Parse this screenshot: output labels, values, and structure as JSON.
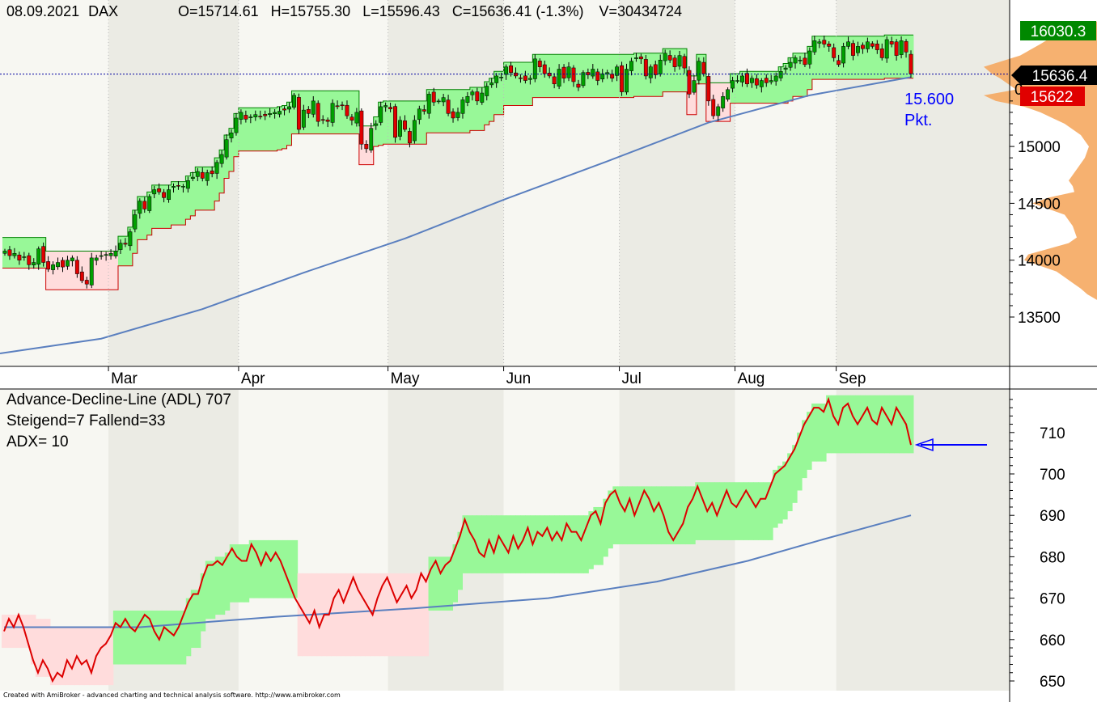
{
  "chart_data": [
    {
      "type": "candlestick",
      "header": {
        "date": "08.09.2021",
        "symbol": "DAX",
        "open": "O=15714.61",
        "high": "H=15755.30",
        "low": "L=15596.43",
        "close": "C=15636.41 (-1.3%)",
        "volume": "V=30434724"
      },
      "y_ticks": [
        13500,
        14000,
        14500,
        15000
      ],
      "ylim": [
        13200,
        16250
      ],
      "months": [
        "Mar",
        "Apr",
        "May",
        "Jun",
        "Jul",
        "Aug",
        "Sep"
      ],
      "price_badges": {
        "high_label": "16030.3",
        "last_label": "15636.4",
        "stop_label": "15622",
        "partial_tick_label": "0"
      },
      "annotation": {
        "line1": "15.600",
        "line2": "Pkt."
      },
      "last_close": 15636.41,
      "series": {
        "close": [
          14080,
          14040,
          14060,
          14000,
          14030,
          13960,
          13980,
          14100,
          13980,
          13920,
          13960,
          13980,
          13940,
          14000,
          14020,
          13880,
          13820,
          13790,
          14020,
          14020,
          14040,
          14050,
          14060,
          14080,
          14150,
          14140,
          14250,
          14400,
          14520,
          14450,
          14560,
          14620,
          14600,
          14550,
          14620,
          14650,
          14650,
          14650,
          14700,
          14730,
          14780,
          14720,
          14770,
          14760,
          14860,
          14930,
          15060,
          15120,
          15250,
          15300,
          15240,
          15260,
          15280,
          15260,
          15270,
          15290,
          15300,
          15310,
          15320,
          15350,
          15450,
          15150,
          15320,
          15290,
          15400,
          15220,
          15230,
          15220,
          15380,
          15350,
          15360,
          15270,
          15230,
          15300,
          15020,
          14980,
          15160,
          15200,
          15350,
          15360,
          15330,
          15080,
          15230,
          15150,
          15030,
          15230,
          15330,
          15310,
          15460,
          15390,
          15400,
          15430,
          15290,
          15250,
          15300,
          15410,
          15440,
          15480,
          15400,
          15470,
          15530,
          15560,
          15620,
          15610,
          15700,
          15650,
          15620,
          15600,
          15580,
          15600,
          15770,
          15700,
          15640,
          15620,
          15550,
          15680,
          15600,
          15700,
          15570,
          15520,
          15650,
          15630,
          15680,
          15580,
          15640,
          15650,
          15600,
          15700,
          15480,
          15680,
          15750,
          15780,
          15770,
          15620,
          15700,
          15630,
          15760,
          15820,
          15760,
          15700,
          15800,
          15690,
          15460,
          15580,
          15750,
          15640,
          15400,
          15270,
          15350,
          15440,
          15500,
          15580,
          15580,
          15620,
          15550,
          15600,
          15540,
          15580,
          15560,
          15580,
          15620,
          15660,
          15690,
          15740,
          15780,
          15760,
          15720,
          15840,
          15930,
          15920,
          15900,
          15880,
          15780,
          15720,
          15880,
          15920,
          15800,
          15880,
          15860,
          15920,
          15880,
          15850,
          15780,
          15940,
          15900,
          15800,
          15930,
          15830,
          15640
        ]
      },
      "sma_200": [
        13180,
        13310,
        13570,
        13890,
        14190,
        14540,
        14870,
        15210,
        15450,
        15610
      ]
    },
    {
      "type": "line",
      "title": "Advance-Decline-Line (ADL) 707",
      "line2": "Steigend=7  Fallend=33",
      "line3": "ADX= 10",
      "y_ticks": [
        650,
        660,
        670,
        680,
        690,
        700,
        710
      ],
      "ylim": [
        648,
        715
      ],
      "last_value": 707,
      "adl": [
        662,
        665,
        663,
        666,
        663,
        659,
        655,
        652,
        655,
        653,
        650,
        652,
        651,
        655,
        653,
        656,
        654,
        655,
        652,
        656,
        658,
        659,
        661,
        664,
        663,
        665,
        663,
        662,
        664,
        666,
        665,
        662,
        660,
        663,
        662,
        661,
        663,
        666,
        669,
        671,
        671,
        675,
        678,
        678,
        679,
        678,
        680,
        682,
        680,
        679,
        679,
        683,
        681,
        678,
        681,
        679,
        681,
        679,
        676,
        673,
        670,
        668,
        666,
        664,
        667,
        663,
        666,
        666,
        670,
        672,
        669,
        672,
        675,
        672,
        670,
        668,
        666,
        670,
        673,
        675,
        672,
        669,
        671,
        673,
        670,
        672,
        676,
        674,
        677,
        679,
        676,
        678,
        679,
        682,
        685,
        689,
        686,
        684,
        681,
        680,
        684,
        681,
        685,
        683,
        681,
        685,
        682,
        684,
        687,
        683,
        686,
        685,
        687,
        684,
        686,
        684,
        688,
        686,
        686,
        684,
        687,
        690,
        691,
        688,
        693,
        695,
        696,
        693,
        691,
        694,
        690,
        693,
        696,
        694,
        691,
        693,
        690,
        686,
        684,
        686,
        688,
        692,
        694,
        697,
        694,
        691,
        693,
        690,
        693,
        696,
        693,
        692,
        694,
        696,
        694,
        692,
        694,
        694,
        697,
        700,
        701,
        702,
        704,
        706,
        709,
        712,
        714,
        716,
        716,
        715,
        718,
        714,
        712,
        716,
        717,
        714,
        712,
        714,
        716,
        713,
        712,
        716,
        714,
        712,
        716,
        714,
        712,
        707
      ]
    }
  ],
  "footer": "Created with AmiBroker - advanced charting and technical analysis software. http://www.amibroker.com",
  "colors": {
    "up": "#00a000",
    "down": "#e00000",
    "green_band": "#98f898",
    "red_band": "#ffdcdc",
    "sma": "#5a7fbf",
    "dotted_line": "#0000a0",
    "annotation": "#0000ff",
    "volume_profile": "#f5a860"
  }
}
